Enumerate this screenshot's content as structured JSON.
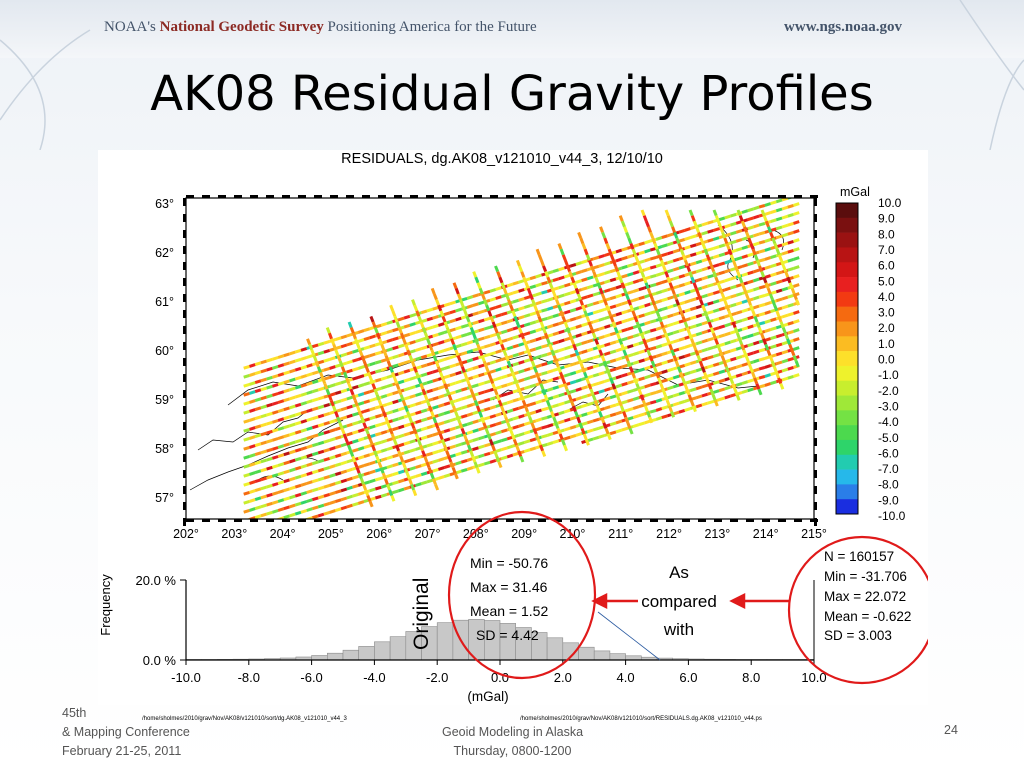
{
  "header": {
    "brand_prefix": "NOAA's",
    "brand_ngs": "National Geodetic Survey",
    "brand_tagline": "Positioning America for the Future",
    "url": "www.ngs.noaa.gov"
  },
  "slide_title": "AK08 Residual Gravity Profiles",
  "map": {
    "title": "RESIDUALS, dg.AK08_v121010_v44_3, 12/10/10",
    "lat_labels": [
      "63°",
      "62°",
      "61°",
      "60°",
      "59°",
      "58°",
      "57°"
    ],
    "lon_labels": [
      "202°",
      "203°",
      "204°",
      "205°",
      "206°",
      "207°",
      "208°",
      "209°",
      "210°",
      "211°",
      "212°",
      "213°",
      "214°",
      "215°"
    ]
  },
  "colorbar": {
    "unit": "mGal",
    "labels": [
      "10.0",
      "9.0",
      "8.0",
      "7.0",
      "6.0",
      "5.0",
      "4.0",
      "3.0",
      "2.0",
      "1.0",
      "0.0",
      "-1.0",
      "-2.0",
      "-3.0",
      "-4.0",
      "-5.0",
      "-6.0",
      "-7.0",
      "-8.0",
      "-9.0",
      "-10.0"
    ],
    "colors": [
      "#5a0d0d",
      "#7a1010",
      "#9a1212",
      "#b81414",
      "#d31616",
      "#e82020",
      "#f23a12",
      "#f56a10",
      "#f8951a",
      "#fbbc22",
      "#fde02a",
      "#eef22c",
      "#c8ee2e",
      "#9fe838",
      "#74e244",
      "#4cd94e",
      "#2ed46a",
      "#22ccb0",
      "#26b8ea",
      "#2a7ee8",
      "#1a2ee0"
    ]
  },
  "histogram": {
    "ylabel": "Frequency",
    "xlabel": "(mGal)",
    "y_ticks": [
      "20.0 %",
      "0.0 %"
    ],
    "x_ticks": [
      "-10.0",
      "-8.0",
      "-6.0",
      "-4.0",
      "-2.0",
      "0.0",
      "2.0",
      "4.0",
      "6.0",
      "8.0",
      "10.0"
    ],
    "y_max_percent": 20.0
  },
  "original_label": "Original",
  "original_stats": [
    "Min = -50.76",
    "Max = 31.46",
    "Mean = 1.52",
    "SD = 4.42"
  ],
  "compare_label": [
    "As",
    "compared",
    "with"
  ],
  "new_stats": [
    "N =  160157",
    "Min = -31.706",
    "Max = 22.072",
    "Mean = -0.622",
    "SD = 3.003"
  ],
  "file_paths": [
    "/home/sholmes/2010/grav/Nov/AK08/v121010/sort/dg.AK08_v121010_v44_3",
    "/home/sholmes/2010/grav/Nov/AK08/v121010/sort/RESIDUALS.dg.AK08_v121010_v44.ps"
  ],
  "footer": {
    "left": [
      "45th",
      "& Mapping Conference",
      "February 21-25, 2011"
    ],
    "center": [
      "Geoid Modeling in Alaska",
      "Thursday, 0800-1200"
    ],
    "page": "24"
  }
}
